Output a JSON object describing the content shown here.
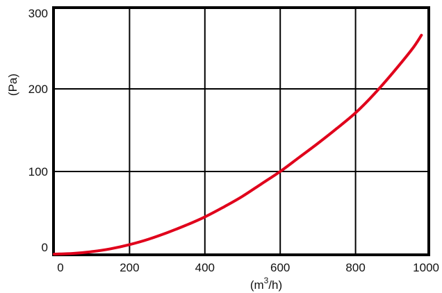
{
  "chart_data": {
    "type": "line",
    "xlabel_base": "(m",
    "xlabel_sup": "3",
    "xlabel_tail": "/h)",
    "ylabel": "(Pa)",
    "xlim": [
      0,
      1000
    ],
    "ylim": [
      0,
      300
    ],
    "x_ticks": [
      "0",
      "200",
      "400",
      "600",
      "800",
      "1000"
    ],
    "y_ticks": [
      "0",
      "100",
      "200",
      "300"
    ],
    "grid": true,
    "series": [
      {
        "color": "#e0001b",
        "x": [
          0,
          50,
          100,
          150,
          200,
          250,
          300,
          350,
          400,
          450,
          500,
          550,
          600,
          650,
          700,
          750,
          800,
          850,
          900,
          950,
          975
        ],
        "y": [
          0,
          0.8,
          3,
          6.5,
          11.5,
          18,
          26,
          35,
          45,
          57,
          70,
          85,
          100,
          117,
          134,
          152,
          171,
          194,
          220,
          248,
          265
        ]
      }
    ]
  }
}
